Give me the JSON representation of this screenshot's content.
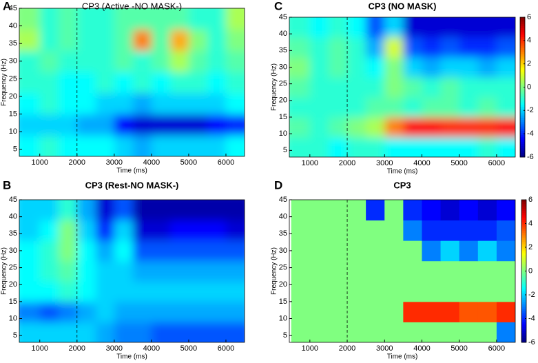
{
  "chart_data": [
    {
      "type": "heatmap",
      "panel_label": "A",
      "title": "CP3 (Active -NO MASK-)",
      "bold_title": false,
      "xlabel": "Time (ms)",
      "ylabel": "Frequency (Hz)",
      "colormap": "jet",
      "smooth": true,
      "colorbar": false,
      "zlim": [
        -6,
        6
      ],
      "xlim": [
        450,
        6500
      ],
      "ylim": [
        3,
        45
      ],
      "xticks": [
        1000,
        2000,
        3000,
        4000,
        5000,
        6000
      ],
      "yticks": [
        5,
        10,
        15,
        20,
        25,
        30,
        35,
        40,
        45
      ],
      "vline": 2000,
      "x": [
        750,
        1250,
        1750,
        2250,
        2750,
        3250,
        3750,
        4250,
        4750,
        5250,
        5750,
        6250
      ],
      "y": [
        6,
        12,
        18,
        24,
        30,
        36,
        42
      ],
      "z": [
        [
          -1.5,
          -1,
          -1.5,
          -1.5,
          -1.5,
          -2,
          -2.5,
          -2,
          -2,
          -2,
          -2,
          -1.5
        ],
        [
          -2,
          -2,
          -2,
          -2.5,
          -2.5,
          -4.5,
          -5,
          -5,
          -5,
          -5,
          -4.5,
          -4
        ],
        [
          -1.5,
          -1,
          -1.5,
          -1.5,
          -2,
          -2,
          -2.5,
          -2,
          -2,
          -2,
          -2,
          -1.5
        ],
        [
          -1,
          -1,
          -1.5,
          -1.5,
          -1,
          -1.5,
          -1,
          -1.5,
          -1,
          -1,
          -1.5,
          -1
        ],
        [
          -1,
          -0.5,
          -1,
          -1,
          -1,
          -0.5,
          -1,
          -0.5,
          0.5,
          -0.5,
          -1,
          -0.5
        ],
        [
          0.5,
          -1,
          -0.5,
          -1,
          -1,
          -0.5,
          3,
          -0.5,
          2.5,
          0,
          -1,
          0
        ],
        [
          0,
          -1,
          -0.5,
          -1,
          -1,
          -0.5,
          -0.5,
          -0.5,
          -0.5,
          -1,
          -1,
          0.5
        ]
      ]
    },
    {
      "type": "heatmap",
      "panel_label": "B",
      "title": "CP3 (Rest-NO MASK-)",
      "bold_title": true,
      "xlabel": "Time (ms)",
      "ylabel": "Frequency (Hz)",
      "colormap": "jet",
      "smooth": true,
      "colorbar": false,
      "zlim": [
        -6,
        6
      ],
      "xlim": [
        450,
        6500
      ],
      "ylim": [
        3,
        45
      ],
      "xticks": [
        1000,
        2000,
        3000,
        4000,
        5000,
        6000
      ],
      "yticks": [
        5,
        10,
        15,
        20,
        25,
        30,
        35,
        40,
        45
      ],
      "vline": 2000,
      "x": [
        750,
        1250,
        1750,
        2250,
        2750,
        3250,
        3750,
        4250,
        4750,
        5250,
        5750,
        6250
      ],
      "y": [
        6,
        12,
        18,
        24,
        30,
        36,
        42
      ],
      "z": [
        [
          -2,
          -2,
          -2,
          -2,
          -2.5,
          -3,
          -3,
          -3.5,
          -3.5,
          -3.5,
          -3.5,
          -3.5
        ],
        [
          -3,
          -3.5,
          -3,
          -2.5,
          -2,
          -2.5,
          -2.5,
          -2.5,
          -2.5,
          -2.5,
          -2.5,
          -2.5
        ],
        [
          -1.5,
          -1.5,
          -1,
          -1.5,
          -2,
          -2,
          -2,
          -2,
          -2,
          -2,
          -2,
          -2
        ],
        [
          -1.5,
          -1,
          -0.5,
          -1.5,
          -2,
          -2,
          -2.5,
          -2.5,
          -2.5,
          -2.5,
          -2.5,
          -2.5
        ],
        [
          -1.5,
          -1,
          0,
          -1.5,
          -2.5,
          -1.5,
          -3.5,
          -3.5,
          -3.5,
          -3.5,
          -3.5,
          -3.5
        ],
        [
          -2,
          -1.5,
          0,
          -2,
          -4,
          -2,
          -5,
          -5,
          -4.5,
          -4.5,
          -4.5,
          -5
        ],
        [
          -2,
          -2,
          -1,
          -2.5,
          -5,
          -3.5,
          -5.5,
          -5.5,
          -5.5,
          -5.5,
          -5.5,
          -5.5
        ]
      ]
    },
    {
      "type": "heatmap",
      "panel_label": "C",
      "title": "CP3 (NO MASK)",
      "bold_title": true,
      "xlabel": "Time (ms)",
      "ylabel": "Frequency (Hz)",
      "colormap": "jet",
      "smooth": true,
      "colorbar": true,
      "zlim": [
        -6,
        6
      ],
      "zticks": [
        6,
        4,
        2,
        0,
        -2,
        -4,
        -6
      ],
      "xlim": [
        450,
        6500
      ],
      "ylim": [
        3,
        45
      ],
      "xticks": [
        1000,
        2000,
        3000,
        4000,
        5000,
        6000
      ],
      "yticks": [
        5,
        10,
        15,
        20,
        25,
        30,
        35,
        40,
        45
      ],
      "vline": 2000,
      "x": [
        750,
        1250,
        1750,
        2250,
        2750,
        3250,
        3750,
        4250,
        4750,
        5250,
        5750,
        6250
      ],
      "y": [
        6,
        12,
        18,
        24,
        30,
        36,
        42
      ],
      "z": [
        [
          -1,
          -1,
          -1.5,
          -1,
          -1,
          -1.5,
          -1.5,
          -1.5,
          -1.5,
          -1.5,
          -1,
          -1.5
        ],
        [
          -0.5,
          -1,
          -0.5,
          0,
          0.5,
          3,
          4.5,
          4.5,
          4,
          4,
          4,
          4.5
        ],
        [
          -1,
          -1,
          -1,
          -1,
          -0.5,
          -0.5,
          -1,
          -0.5,
          -0.5,
          -1,
          -0.5,
          -1
        ],
        [
          -0.5,
          -1,
          -1,
          -1,
          -1,
          0,
          -0.5,
          -1,
          -0.5,
          -1,
          -1,
          -1
        ],
        [
          0,
          -1,
          -0.5,
          -1,
          -1.5,
          0,
          -2,
          -2.5,
          -2,
          -2,
          -2.5,
          -2
        ],
        [
          -0.5,
          -1,
          -0.5,
          -1,
          -2.5,
          1,
          -3.5,
          -4,
          -3.5,
          -4,
          -4,
          -3.5
        ],
        [
          -1,
          -1.5,
          -1,
          -1.5,
          -3.5,
          -2,
          -5,
          -5,
          -5,
          -5,
          -5,
          -5
        ]
      ]
    },
    {
      "type": "heatmap",
      "panel_label": "D",
      "title": "CP3",
      "bold_title": true,
      "xlabel": "Time (ms)",
      "ylabel": "Frequency (Hz)",
      "colormap": "jet",
      "smooth": false,
      "colorbar": true,
      "zlim": [
        -6,
        6
      ],
      "zticks": [
        6,
        4,
        2,
        0,
        -2,
        -4,
        -6
      ],
      "xlim": [
        450,
        6500
      ],
      "ylim": [
        3,
        45
      ],
      "xticks": [
        1000,
        2000,
        3000,
        4000,
        5000,
        6000
      ],
      "yticks": [
        5,
        10,
        15,
        20,
        25,
        30,
        35,
        40,
        45
      ],
      "vline": 2000,
      "x": [
        750,
        1250,
        1750,
        2250,
        2750,
        3250,
        3750,
        4250,
        4750,
        5250,
        5750,
        6250
      ],
      "y": [
        6,
        12,
        18,
        24,
        30,
        36,
        42
      ],
      "z": [
        [
          0,
          0,
          0,
          0,
          0,
          0,
          0,
          0,
          0,
          0,
          0,
          -3
        ],
        [
          0,
          0,
          0,
          0,
          0,
          0,
          4,
          4,
          4,
          3.5,
          3.5,
          4
        ],
        [
          0,
          0,
          0,
          0,
          0,
          0,
          0,
          0,
          0,
          0,
          0,
          0
        ],
        [
          0,
          0,
          0,
          0,
          0,
          0,
          0,
          0,
          0,
          0,
          0,
          0
        ],
        [
          0,
          0,
          0,
          0,
          0,
          0,
          0,
          -3,
          -2,
          -3,
          -2,
          -3
        ],
        [
          0,
          0,
          0,
          0,
          0,
          0,
          -3,
          -4,
          -4,
          -4,
          -4,
          -3.5
        ],
        [
          0,
          0,
          0,
          0,
          -4,
          0,
          -4,
          -4.5,
          -5,
          -4.5,
          -5,
          -4.5
        ]
      ]
    }
  ]
}
